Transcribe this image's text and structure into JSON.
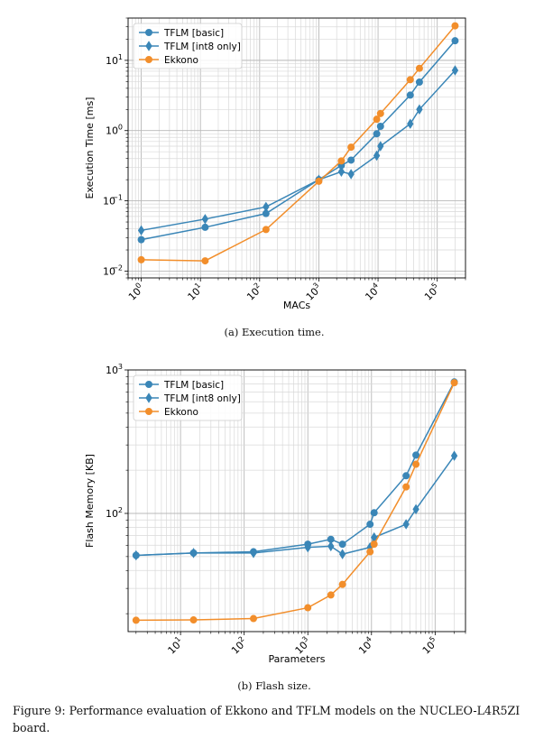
{
  "caption": "Figure 9: Performance evaluation of Ekkono and TFLM models on the NUCLEO-L4R5ZI board.",
  "colors": {
    "tflm_basic": "#3a86b7",
    "tflm_int8": "#3a86b7",
    "ekkono": "#f28e2b"
  },
  "chart_data": [
    {
      "type": "line",
      "subcaption": "(a) Execution time.",
      "xlabel": "MACs",
      "ylabel": "Execution Time [ms]",
      "xscale": "log",
      "yscale": "log",
      "xlim": [
        0.6,
        300000
      ],
      "ylim": [
        0.008,
        40
      ],
      "grid": true,
      "legend": "top-left",
      "xticks": [
        {
          "value": 1,
          "base": "10",
          "exp": "0"
        },
        {
          "value": 10,
          "base": "10",
          "exp": "1"
        },
        {
          "value": 100,
          "base": "10",
          "exp": "2"
        },
        {
          "value": 1000,
          "base": "10",
          "exp": "3"
        },
        {
          "value": 10000,
          "base": "10",
          "exp": "4"
        },
        {
          "value": 100000,
          "base": "10",
          "exp": "5"
        }
      ],
      "yticks": [
        {
          "value": 0.01,
          "base": "10",
          "exp": "−2"
        },
        {
          "value": 0.1,
          "base": "10",
          "exp": "−1"
        },
        {
          "value": 1,
          "base": "10",
          "exp": "0"
        },
        {
          "value": 10,
          "base": "10",
          "exp": "1"
        }
      ],
      "series": [
        {
          "name": "TFLM [basic]",
          "marker": "circle",
          "color": "#3a86b7",
          "x": [
            1,
            12,
            128,
            1000,
            2400,
            3500,
            9500,
            11000,
            35000,
            50000,
            200000
          ],
          "y": [
            0.028,
            0.042,
            0.066,
            0.2,
            0.32,
            0.38,
            0.9,
            1.15,
            3.2,
            4.9,
            19
          ]
        },
        {
          "name": "TFLM [int8 only]",
          "marker": "diamond",
          "color": "#3a86b7",
          "x": [
            1,
            12,
            128,
            1000,
            2400,
            3500,
            9500,
            11000,
            35000,
            50000,
            200000
          ],
          "y": [
            0.038,
            0.055,
            0.082,
            0.2,
            0.26,
            0.24,
            0.44,
            0.6,
            1.25,
            2.0,
            7.2
          ]
        },
        {
          "name": "Ekkono",
          "marker": "circle",
          "color": "#f28e2b",
          "x": [
            1,
            12,
            128,
            1000,
            2400,
            3500,
            9500,
            11000,
            35000,
            50000,
            200000
          ],
          "y": [
            0.0145,
            0.014,
            0.039,
            0.19,
            0.37,
            0.58,
            1.45,
            1.75,
            5.3,
            7.7,
            31
          ]
        }
      ]
    },
    {
      "type": "line",
      "subcaption": "(b) Flash size.",
      "xlabel": "Parameters",
      "ylabel": "Flash Memory [KB]",
      "xscale": "log",
      "yscale": "log",
      "xlim": [
        1.5,
        300000
      ],
      "ylim": [
        15,
        1000
      ],
      "grid": true,
      "legend": "top-left",
      "xticks": [
        {
          "value": 10,
          "base": "10",
          "exp": "1"
        },
        {
          "value": 100,
          "base": "10",
          "exp": "2"
        },
        {
          "value": 1000,
          "base": "10",
          "exp": "3"
        },
        {
          "value": 10000,
          "base": "10",
          "exp": "4"
        },
        {
          "value": 100000,
          "base": "10",
          "exp": "5"
        }
      ],
      "yticks": [
        {
          "value": 100,
          "base": "10",
          "exp": "2"
        },
        {
          "value": 1000,
          "base": "10",
          "exp": "3"
        }
      ],
      "series": [
        {
          "name": "TFLM [basic]",
          "marker": "circle",
          "color": "#3a86b7",
          "x": [
            2,
            16,
            140,
            1000,
            2300,
            3500,
            9500,
            11000,
            35000,
            50000,
            200000
          ],
          "y": [
            51,
            53,
            54,
            61,
            66,
            61,
            84,
            101,
            183,
            255,
            825
          ]
        },
        {
          "name": "TFLM [int8 only]",
          "marker": "diamond",
          "color": "#3a86b7",
          "x": [
            2,
            16,
            140,
            1000,
            2300,
            3500,
            9500,
            11000,
            35000,
            50000,
            200000
          ],
          "y": [
            51,
            53,
            53,
            58,
            59,
            52,
            58,
            68,
            84,
            107,
            252
          ]
        },
        {
          "name": "Ekkono",
          "marker": "circle",
          "color": "#f28e2b",
          "x": [
            2,
            16,
            140,
            1000,
            2300,
            3500,
            9500,
            11000,
            35000,
            50000,
            200000
          ],
          "y": [
            18,
            18.1,
            18.5,
            22,
            27,
            32,
            54,
            61,
            153,
            220,
            815
          ]
        }
      ]
    }
  ]
}
